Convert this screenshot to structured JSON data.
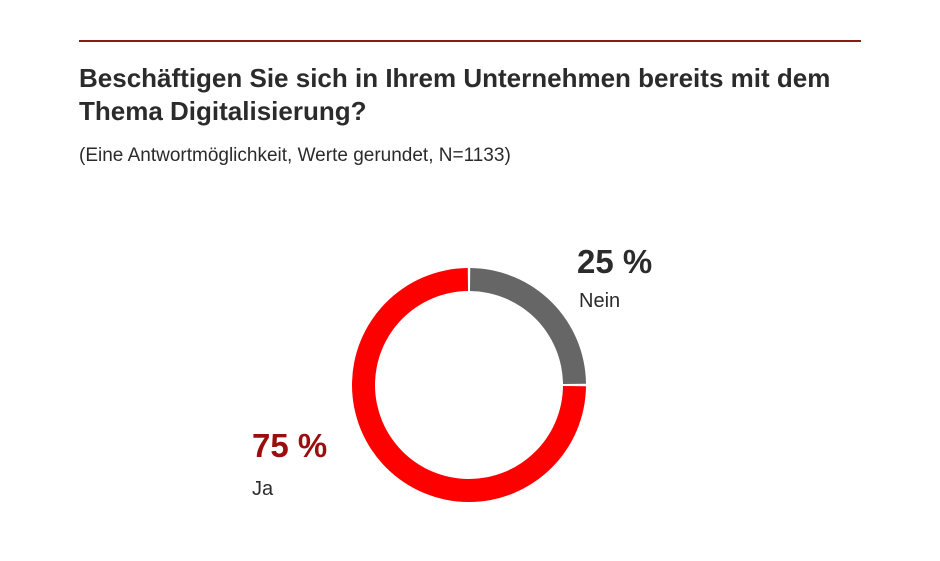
{
  "header": {
    "title": "Beschäftigen Sie sich in Ihrem Unternehmen bereits mit dem Thema Digitalisierung?",
    "subtitle": "(Eine Antwortmöglichkeit, Werte gerundet, N=1133)"
  },
  "colors": {
    "rule": "#8b1a1a",
    "ja": "#ff0000",
    "ja_label": "#9b0e0e",
    "nein": "#666666",
    "nein_label": "#2b2b2b"
  },
  "chart_data": {
    "type": "pie",
    "variant": "donut",
    "title": "Beschäftigen Sie sich in Ihrem Unternehmen bereits mit dem Thema Digitalisierung?",
    "subtitle": "(Eine Antwortmöglichkeit, Werte gerundet, N=1133)",
    "unit": "%",
    "slices": [
      {
        "name": "Nein",
        "value": 25,
        "value_label": "25 %",
        "color": "#666666"
      },
      {
        "name": "Ja",
        "value": 75,
        "value_label": "75 %",
        "color": "#ff0000"
      }
    ],
    "legend": "direct-labels"
  }
}
